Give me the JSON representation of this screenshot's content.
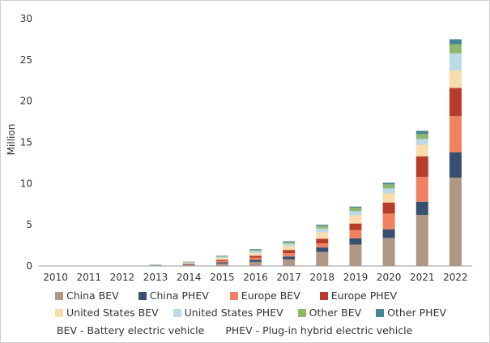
{
  "chart_data": {
    "type": "bar",
    "stacked": true,
    "ylabel": "Million",
    "ylim": [
      0,
      30
    ],
    "yticks": [
      0,
      5,
      10,
      15,
      20,
      25,
      30
    ],
    "grid": false,
    "legend_placement": "bottom",
    "categories": [
      "2010",
      "2011",
      "2012",
      "2013",
      "2014",
      "2015",
      "2016",
      "2017",
      "2018",
      "2019",
      "2020",
      "2021",
      "2022"
    ],
    "series": [
      {
        "name": "China BEV",
        "color": "#b09684",
        "values": [
          0,
          0,
          0.02,
          0.05,
          0.1,
          0.3,
          0.5,
          0.8,
          1.7,
          2.6,
          3.4,
          6.2,
          10.7
        ]
      },
      {
        "name": "China PHEV",
        "color": "#394f6f",
        "values": [
          0,
          0,
          0,
          0.01,
          0.05,
          0.15,
          0.25,
          0.35,
          0.55,
          0.75,
          1.05,
          1.6,
          3.1
        ]
      },
      {
        "name": "Europe BEV",
        "color": "#f08262",
        "values": [
          0,
          0,
          0,
          0.01,
          0.05,
          0.15,
          0.25,
          0.4,
          0.5,
          1.0,
          1.9,
          3.0,
          4.4
        ]
      },
      {
        "name": "Europe PHEV",
        "color": "#b83c2b",
        "values": [
          0,
          0,
          0,
          0.01,
          0.04,
          0.15,
          0.25,
          0.4,
          0.55,
          0.8,
          1.35,
          2.5,
          3.4
        ]
      },
      {
        "name": "United States BEV",
        "color": "#f8dcaa",
        "values": [
          0,
          0,
          0,
          0.02,
          0.1,
          0.2,
          0.3,
          0.45,
          0.8,
          1.0,
          1.1,
          1.4,
          2.1
        ]
      },
      {
        "name": "United States PHEV",
        "color": "#bcd9e6",
        "values": [
          0,
          0,
          0,
          0.02,
          0.1,
          0.15,
          0.25,
          0.3,
          0.45,
          0.5,
          0.6,
          0.7,
          2.1
        ]
      },
      {
        "name": "Other BEV",
        "color": "#8fb86f",
        "values": [
          0,
          0,
          0,
          0.01,
          0.05,
          0.1,
          0.15,
          0.2,
          0.3,
          0.4,
          0.5,
          0.6,
          1.1
        ]
      },
      {
        "name": "Other PHEV",
        "color": "#4a8594",
        "values": [
          0,
          0,
          0,
          0.01,
          0.03,
          0.05,
          0.1,
          0.1,
          0.15,
          0.15,
          0.2,
          0.4,
          0.6
        ]
      }
    ]
  },
  "note": {
    "bev": "BEV - Battery electric vehicle",
    "phev": "PHEV - Plug-in hybrid electric vehicle"
  }
}
